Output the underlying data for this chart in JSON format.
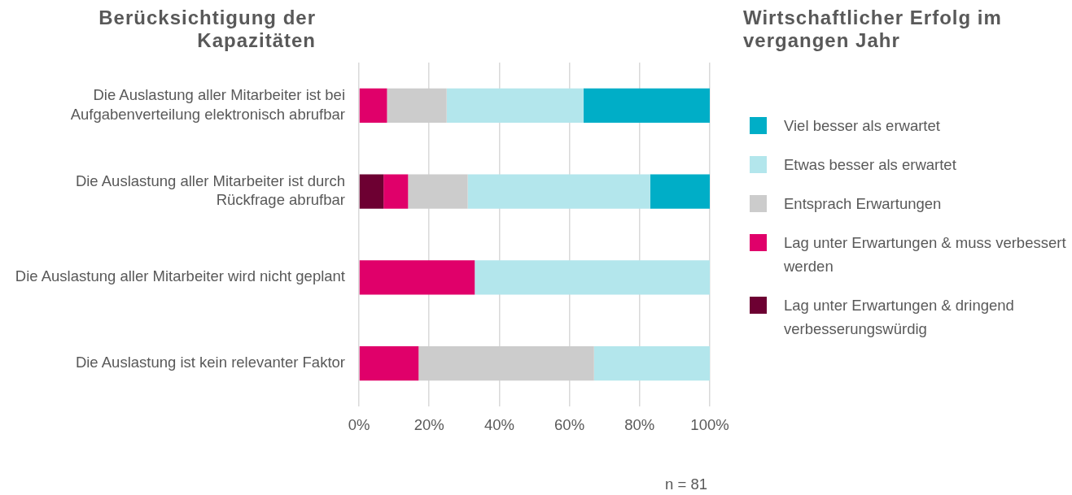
{
  "chart_data": {
    "type": "bar",
    "orientation": "horizontal",
    "stacked": true,
    "title": "Berücksichtigung der Kapazitäten",
    "legend_title": "Wirtschaftlicher Erfolg im vergangen Jahr",
    "categories": [
      "Die Auslastung aller Mitarbeiter ist bei Aufgabenverteilung elektronisch abrufbar",
      "Die Auslastung aller Mitarbeiter ist durch Rückfrage abrufbar",
      "Die Auslastung aller Mitarbeiter wird nicht geplant",
      "Die Auslastung ist kein relevanter Faktor"
    ],
    "series": [
      {
        "name": "Lag unter Erwartungen & dringend verbesserungswürdig",
        "color": "#6d0032",
        "values": [
          0,
          7,
          0,
          0
        ]
      },
      {
        "name": "Lag unter Erwartungen & muss verbessert werden",
        "color": "#e0006a",
        "values": [
          8,
          7,
          33,
          17
        ]
      },
      {
        "name": "Entsprach Erwartungen",
        "color": "#cccccc",
        "values": [
          17,
          17,
          0,
          50
        ]
      },
      {
        "name": "Etwas besser als erwartet",
        "color": "#b3e6ec",
        "values": [
          39,
          52,
          67,
          33
        ]
      },
      {
        "name": "Viel besser als erwartet",
        "color": "#00aec7",
        "values": [
          36,
          17,
          0,
          0
        ]
      }
    ],
    "xlim": [
      0,
      100
    ],
    "xticks": [
      {
        "value": 0,
        "label": "0%"
      },
      {
        "value": 20,
        "label": "20%"
      },
      {
        "value": 40,
        "label": "40%"
      },
      {
        "value": 60,
        "label": "60%"
      },
      {
        "value": 80,
        "label": "80%"
      },
      {
        "value": 100,
        "label": "100%"
      }
    ],
    "grid": "x",
    "legend": "right",
    "annotations": [
      "n = 81"
    ]
  }
}
